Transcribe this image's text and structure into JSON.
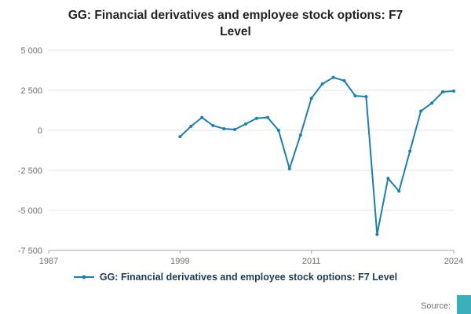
{
  "title": "GG: Financial derivatives and employee stock options: F7 Level",
  "source": {
    "label": "Source:"
  },
  "colors": {
    "line": "#1780b6",
    "legend_text": "#1c3c55",
    "axis_text": "#707070",
    "grid": "#e6e6e6",
    "axis_line": "#a6a6a6",
    "title_text": "#222222",
    "corner_box": "#3ab0bc"
  },
  "chart_data": {
    "type": "line",
    "title": "GG: Financial derivatives and employee stock options: F7 Level",
    "xlabel": "",
    "ylabel": "",
    "xlim": [
      1987,
      2024
    ],
    "ylim": [
      -7500,
      5000
    ],
    "x_ticks": [
      1987,
      1999,
      2011,
      2024
    ],
    "y_ticks": [
      5000,
      2500,
      0,
      -2500,
      -5000,
      -7500
    ],
    "y_tick_labels": [
      "5 000",
      "2 500",
      "0",
      "-2 500",
      "-5 000",
      "-7 500"
    ],
    "grid": "horizontal",
    "legend_position": "bottom",
    "series": [
      {
        "name": "GG: Financial derivatives and employee stock options: F7 Level",
        "x": [
          1999,
          2000,
          2001,
          2002,
          2003,
          2004,
          2005,
          2006,
          2007,
          2008,
          2009,
          2010,
          2011,
          2012,
          2013,
          2014,
          2015,
          2016,
          2017,
          2018,
          2019,
          2020,
          2021,
          2022,
          2023,
          2024
        ],
        "values": [
          -400,
          250,
          800,
          300,
          100,
          50,
          400,
          750,
          800,
          0,
          -2400,
          -300,
          2000,
          2900,
          3300,
          3100,
          2150,
          2100,
          -6500,
          -3000,
          -3800,
          -1300,
          1200,
          1700,
          2400,
          2450
        ]
      }
    ]
  }
}
